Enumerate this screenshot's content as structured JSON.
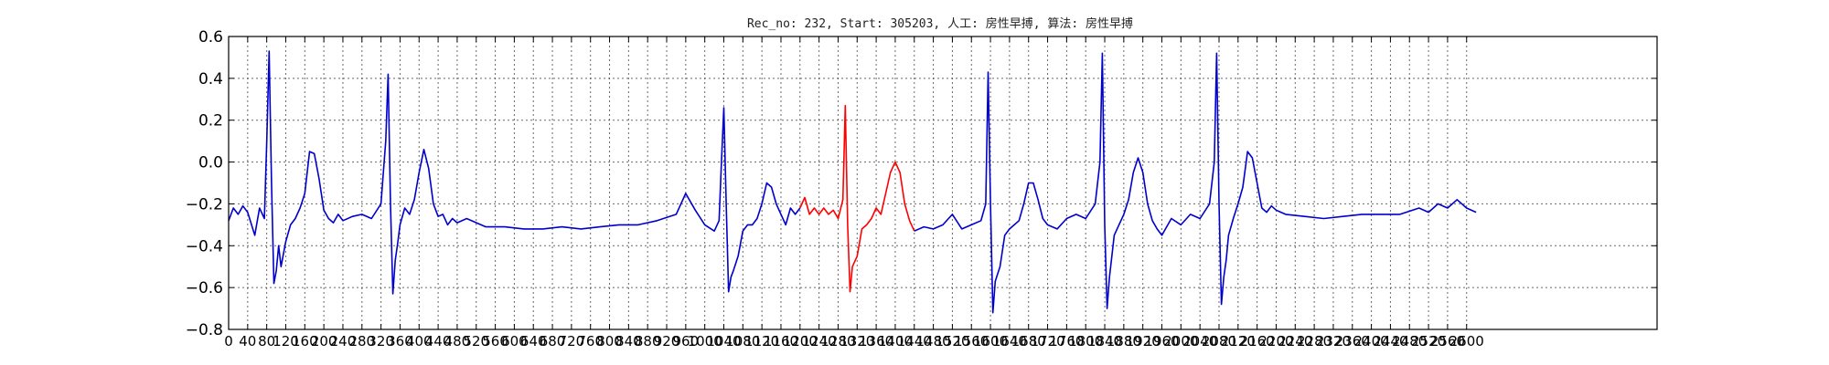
{
  "chart_data": {
    "type": "line",
    "title": "Rec_no: 232, Start: 305203, 人工: 房性早搏, 算法: 房性早搏",
    "xlabel": "",
    "ylabel": "",
    "xlim": [
      0,
      3000
    ],
    "ylim": [
      -0.8,
      0.6
    ],
    "grid": true,
    "yticks": [
      -0.8,
      -0.6,
      -0.4,
      -0.2,
      0.0,
      0.2,
      0.4,
      0.6
    ],
    "ytick_labels": [
      "−0.8",
      "−0.6",
      "−0.4",
      "−0.2",
      "0.0",
      "0.2",
      "0.4",
      "0.6"
    ],
    "xticks": [
      0,
      40,
      80,
      120,
      160,
      200,
      240,
      280,
      320,
      360,
      400,
      440,
      480,
      520,
      560,
      600,
      640,
      680,
      720,
      760,
      800,
      840,
      880,
      920,
      960,
      1000,
      1040,
      1080,
      1120,
      1160,
      1200,
      1240,
      1280,
      1320,
      1360,
      1400,
      1440,
      1480,
      1520,
      1560,
      1600,
      1640,
      1680,
      1720,
      1760,
      1800,
      1840,
      1880,
      1920,
      1960,
      2000,
      2040,
      2080,
      2120,
      2160,
      2200,
      2240,
      2280,
      2320,
      2360,
      2400,
      2440,
      2480,
      2520,
      2560,
      2600
    ],
    "series": [
      {
        "color": "#0000cc",
        "x": [
          0,
          10,
          20,
          30,
          40,
          55,
          65,
          75,
          80,
          85,
          90,
          95,
          100,
          105,
          110,
          120,
          130,
          140,
          150,
          160,
          170,
          180,
          190,
          200,
          210,
          220,
          230,
          240,
          260,
          280,
          300,
          320,
          330,
          335,
          340,
          345,
          350,
          355,
          360,
          370,
          380,
          390,
          400,
          410,
          420,
          430,
          440,
          450,
          460,
          470,
          480,
          500,
          540,
          580,
          620,
          660,
          700,
          740,
          780,
          820,
          860,
          900,
          940,
          960,
          980,
          1000,
          1020,
          1030,
          1035,
          1040,
          1045,
          1050,
          1055,
          1060,
          1070,
          1080,
          1090,
          1100,
          1110,
          1120,
          1130,
          1140,
          1150,
          1160,
          1170,
          1180,
          1190,
          1200
        ],
        "y": [
          -0.28,
          -0.22,
          -0.25,
          -0.21,
          -0.24,
          -0.35,
          -0.22,
          -0.27,
          0.1,
          0.53,
          -0.1,
          -0.58,
          -0.52,
          -0.4,
          -0.5,
          -0.38,
          -0.3,
          -0.27,
          -0.22,
          -0.15,
          0.05,
          0.04,
          -0.08,
          -0.23,
          -0.27,
          -0.29,
          -0.25,
          -0.28,
          -0.26,
          -0.25,
          -0.27,
          -0.2,
          0.1,
          0.42,
          -0.2,
          -0.63,
          -0.47,
          -0.39,
          -0.3,
          -0.22,
          -0.25,
          -0.18,
          -0.05,
          0.06,
          -0.03,
          -0.2,
          -0.26,
          -0.25,
          -0.3,
          -0.27,
          -0.29,
          -0.27,
          -0.31,
          -0.31,
          -0.32,
          -0.32,
          -0.31,
          -0.32,
          -0.31,
          -0.3,
          -0.3,
          -0.28,
          -0.25,
          -0.15,
          -0.23,
          -0.3,
          -0.33,
          -0.28,
          0.0,
          0.26,
          -0.2,
          -0.62,
          -0.55,
          -0.52,
          -0.45,
          -0.33,
          -0.3,
          -0.3,
          -0.27,
          -0.2,
          -0.1,
          -0.12,
          -0.2,
          -0.25,
          -0.3,
          -0.22,
          -0.25,
          -0.22
        ]
      },
      {
        "color": "#ff0000",
        "x": [
          1200,
          1210,
          1220,
          1230,
          1240,
          1250,
          1260,
          1270,
          1280,
          1290,
          1295,
          1300,
          1305,
          1310,
          1320,
          1330,
          1340,
          1350,
          1360,
          1370,
          1380,
          1390,
          1400,
          1410,
          1420,
          1430,
          1440
        ],
        "y": [
          -0.22,
          -0.17,
          -0.25,
          -0.22,
          -0.25,
          -0.22,
          -0.25,
          -0.23,
          -0.27,
          -0.18,
          0.27,
          -0.3,
          -0.62,
          -0.5,
          -0.45,
          -0.32,
          -0.3,
          -0.27,
          -0.22,
          -0.25,
          -0.15,
          -0.05,
          0.0,
          -0.05,
          -0.2,
          -0.28,
          -0.33
        ]
      },
      {
        "color": "#0000cc",
        "x": [
          1440,
          1460,
          1480,
          1500,
          1520,
          1540,
          1560,
          1580,
          1590,
          1595,
          1600,
          1605,
          1610,
          1620,
          1630,
          1640,
          1650,
          1660,
          1670,
          1680,
          1690,
          1700,
          1710,
          1720,
          1740,
          1760,
          1780,
          1800,
          1820,
          1830,
          1835,
          1840,
          1845,
          1850,
          1855,
          1860,
          1870,
          1880,
          1890,
          1900,
          1910,
          1920,
          1930,
          1940,
          1950,
          1960,
          1980,
          2000,
          2020,
          2040,
          2060,
          2070,
          2075,
          2080,
          2085,
          2090,
          2095,
          2100,
          2110,
          2120,
          2130,
          2140,
          2150,
          2160,
          2170,
          2180,
          2190,
          2200,
          2220,
          2260,
          2300,
          2340,
          2380,
          2420,
          2460,
          2500,
          2520,
          2540,
          2560,
          2580,
          2600,
          2620
        ],
        "y": [
          -0.33,
          -0.31,
          -0.32,
          -0.3,
          -0.25,
          -0.32,
          -0.3,
          -0.28,
          -0.2,
          0.43,
          -0.2,
          -0.72,
          -0.57,
          -0.5,
          -0.35,
          -0.32,
          -0.3,
          -0.28,
          -0.2,
          -0.1,
          -0.1,
          -0.18,
          -0.27,
          -0.3,
          -0.32,
          -0.27,
          -0.25,
          -0.27,
          -0.2,
          0.0,
          0.52,
          -0.3,
          -0.7,
          -0.55,
          -0.45,
          -0.35,
          -0.3,
          -0.25,
          -0.18,
          -0.05,
          0.02,
          -0.05,
          -0.2,
          -0.28,
          -0.32,
          -0.35,
          -0.27,
          -0.3,
          -0.25,
          -0.27,
          -0.2,
          0.0,
          0.52,
          -0.2,
          -0.68,
          -0.55,
          -0.47,
          -0.35,
          -0.27,
          -0.2,
          -0.12,
          0.05,
          0.02,
          -0.1,
          -0.22,
          -0.24,
          -0.21,
          -0.23,
          -0.25,
          -0.26,
          -0.27,
          -0.26,
          -0.25,
          -0.25,
          -0.25,
          -0.22,
          -0.24,
          -0.2,
          -0.22,
          -0.18,
          -0.22,
          -0.24
        ]
      }
    ]
  }
}
